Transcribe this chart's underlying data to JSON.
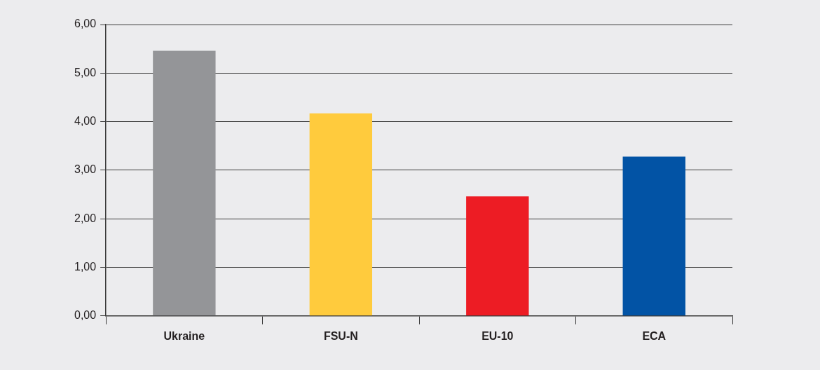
{
  "chart_data": {
    "type": "bar",
    "categories": [
      "Ukraine",
      "FSU-N",
      "EU-10",
      "ECA"
    ],
    "values": [
      5.46,
      4.17,
      2.46,
      3.28
    ],
    "colors": [
      "#949598",
      "#ffcb3d",
      "#ed1c24",
      "#0253a5"
    ],
    "ylim": [
      0,
      6
    ],
    "yticks": [
      {
        "value": 0,
        "label": "0,00"
      },
      {
        "value": 1,
        "label": "1,00"
      },
      {
        "value": 2,
        "label": "2,00"
      },
      {
        "value": 3,
        "label": "3,00"
      },
      {
        "value": 4,
        "label": "4,00"
      },
      {
        "value": 5,
        "label": "5,00"
      },
      {
        "value": 6,
        "label": "6,00"
      }
    ],
    "grid": "y",
    "legend": false
  }
}
